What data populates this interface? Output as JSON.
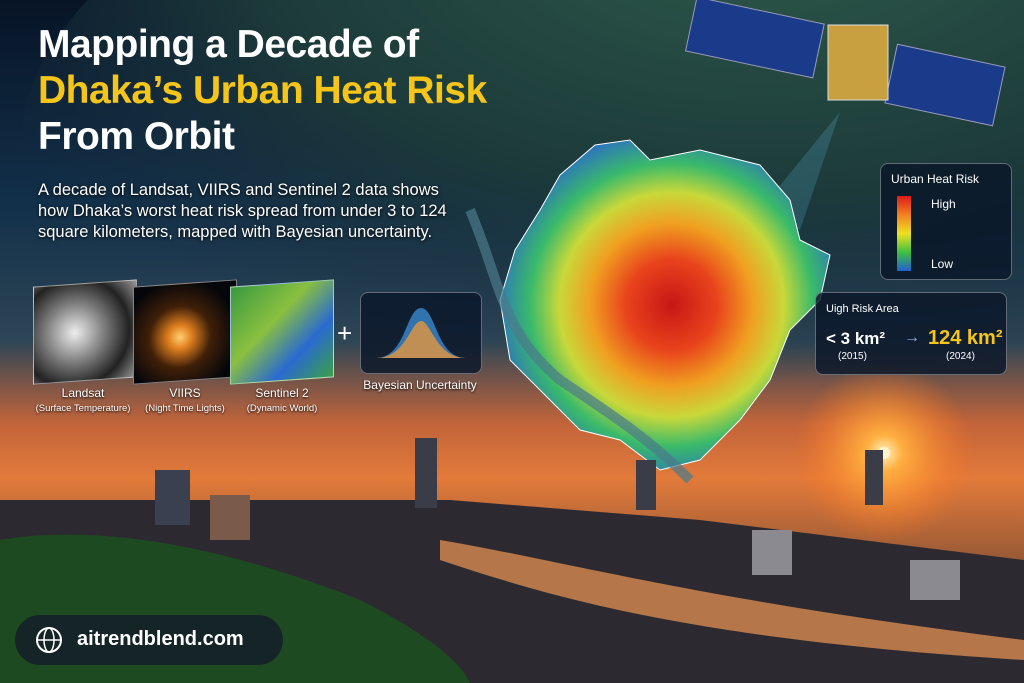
{
  "header": {
    "title_line1": "Mapping a Decade of",
    "title_line2": "Dhaka’s Urban Heat Risk",
    "title_line3": "From Orbit",
    "subtitle": "A decade of Landsat, VIIRS and Sentinel 2 data shows how Dhaka’s worst heat risk spread from under 3 to 124 square kilometers, mapped with Bayesian uncertainty."
  },
  "sources": [
    {
      "name": "Landsat",
      "detail": "(Surface Temperature)"
    },
    {
      "name": "VIIRS",
      "detail": "(Night Time Lights)"
    },
    {
      "name": "Sentinel 2",
      "detail": "(Dynamic World)"
    }
  ],
  "plus": "+",
  "method": "Bayesian Uncertainty",
  "legend": {
    "title": "Urban Heat Risk",
    "high": "High",
    "low": "Low"
  },
  "risk_area": {
    "title": "Uigh Risk Area",
    "before": {
      "value": "< 3 km²",
      "year": "(2015)"
    },
    "arrow": "→",
    "after": {
      "value": "124 km²",
      "year": "(2024)"
    }
  },
  "footer": {
    "site": "aitrendblend.com"
  }
}
